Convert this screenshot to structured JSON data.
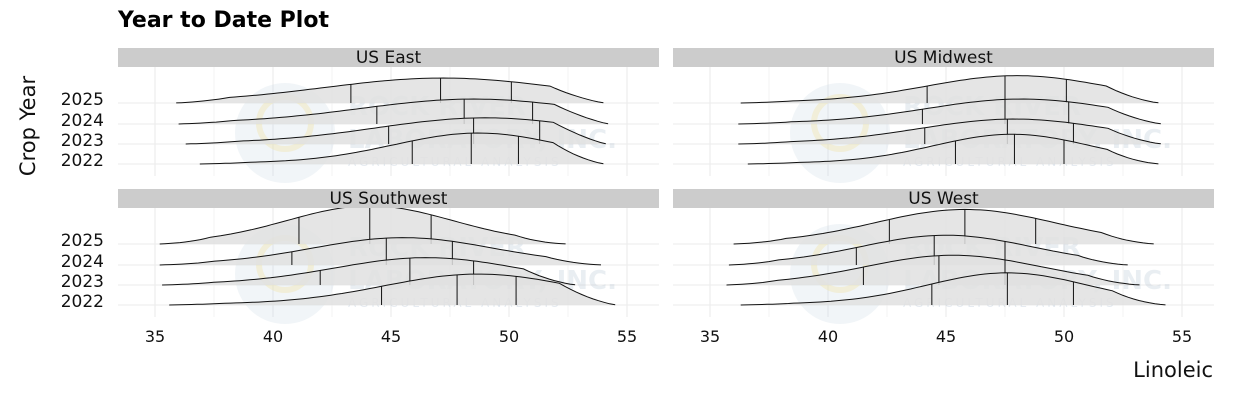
{
  "chart_data": {
    "type": "ridgeline-density",
    "title": "Year to Date Plot",
    "xlabel": "Linoleic",
    "ylabel": "Crop Year",
    "x_ticks": [
      35,
      40,
      45,
      50,
      55
    ],
    "xlim": [
      33.5,
      56.5
    ],
    "y_categories": [
      "2022",
      "2023",
      "2024",
      "2025"
    ],
    "quantile_lines": "25th, 50th, 75th percentiles",
    "grid": true,
    "watermark": {
      "line1": "ROCK RIVER",
      "line2": "LABORATORY, INC.",
      "line3": "AGRICULTURAL ANALYSIS"
    },
    "panels": [
      {
        "name": "US East",
        "series": [
          {
            "year": "2025",
            "range": [
              35.9,
              54.0
            ],
            "peak": 47.2,
            "height": 1.0,
            "sd": 5.0,
            "quantiles": [
              43.3,
              47.1,
              50.1
            ]
          },
          {
            "year": "2024",
            "range": [
              36.0,
              54.2
            ],
            "peak": 48.5,
            "height": 1.0,
            "sd": 4.8,
            "quantiles": [
              44.4,
              48.1,
              51.0
            ]
          },
          {
            "year": "2023",
            "range": [
              36.3,
              54.1
            ],
            "peak": 49.0,
            "height": 1.05,
            "sd": 4.6,
            "quantiles": [
              44.9,
              48.5,
              51.3
            ]
          },
          {
            "year": "2022",
            "range": [
              36.9,
              54.0
            ],
            "peak": 48.7,
            "height": 1.25,
            "sd": 3.6,
            "quantiles": [
              45.9,
              48.4,
              50.4
            ]
          }
        ]
      },
      {
        "name": "US Midwest",
        "series": [
          {
            "year": "2025",
            "range": [
              36.3,
              54.0
            ],
            "peak": 48.0,
            "height": 1.1,
            "sd": 3.8,
            "quantiles": [
              44.2,
              47.5,
              50.1
            ]
          },
          {
            "year": "2024",
            "range": [
              36.2,
              54.1
            ],
            "peak": 48.2,
            "height": 1.0,
            "sd": 4.0,
            "quantiles": [
              44.0,
              47.5,
              50.2
            ]
          },
          {
            "year": "2023",
            "range": [
              36.2,
              54.1
            ],
            "peak": 47.9,
            "height": 1.0,
            "sd": 4.0,
            "quantiles": [
              44.1,
              47.6,
              50.4
            ]
          },
          {
            "year": "2022",
            "range": [
              36.6,
              54.0
            ],
            "peak": 47.8,
            "height": 1.2,
            "sd": 3.3,
            "quantiles": [
              45.4,
              47.9,
              50.0
            ]
          }
        ]
      },
      {
        "name": "US Southwest",
        "series": [
          {
            "year": "2025",
            "range": [
              35.2,
              52.4
            ],
            "peak": 44.1,
            "height": 1.55,
            "sd": 3.5,
            "quantiles": [
              41.1,
              44.1,
              46.7
            ]
          },
          {
            "year": "2024",
            "range": [
              35.2,
              53.9
            ],
            "peak": 45.5,
            "height": 1.1,
            "sd": 3.8,
            "quantiles": [
              40.8,
              44.8,
              47.6
            ]
          },
          {
            "year": "2023",
            "range": [
              35.3,
              52.8
            ],
            "peak": 46.5,
            "height": 1.1,
            "sd": 3.9,
            "quantiles": [
              42.0,
              45.8,
              48.5
            ]
          },
          {
            "year": "2022",
            "range": [
              35.6,
              54.5
            ],
            "peak": 48.7,
            "height": 1.25,
            "sd": 4.0,
            "quantiles": [
              44.6,
              47.8,
              50.3
            ]
          }
        ]
      },
      {
        "name": "US West",
        "series": [
          {
            "year": "2025",
            "range": [
              36.0,
              53.8
            ],
            "peak": 45.8,
            "height": 1.4,
            "sd": 3.8,
            "quantiles": [
              42.6,
              45.8,
              48.8
            ]
          },
          {
            "year": "2024",
            "range": [
              35.8,
              52.7
            ],
            "peak": 45.0,
            "height": 1.2,
            "sd": 3.6,
            "quantiles": [
              41.2,
              44.5,
              47.5
            ]
          },
          {
            "year": "2023",
            "range": [
              35.7,
              53.2
            ],
            "peak": 45.3,
            "height": 1.2,
            "sd": 3.7,
            "quantiles": [
              41.5,
              44.7,
              47.5
            ]
          },
          {
            "year": "2022",
            "range": [
              36.3,
              54.3
            ],
            "peak": 47.6,
            "height": 1.3,
            "sd": 3.4,
            "quantiles": [
              44.4,
              47.6,
              50.4
            ]
          }
        ]
      }
    ]
  },
  "labels": {
    "title": "Year to Date Plot",
    "xlabel": "Linoleic",
    "ylabel": "Crop Year"
  },
  "colors": {
    "strip_bg": "#cccccc",
    "ridge_fill": "#e1e1e1",
    "ridge_line": "#111111",
    "grid": "#ebebeb"
  }
}
